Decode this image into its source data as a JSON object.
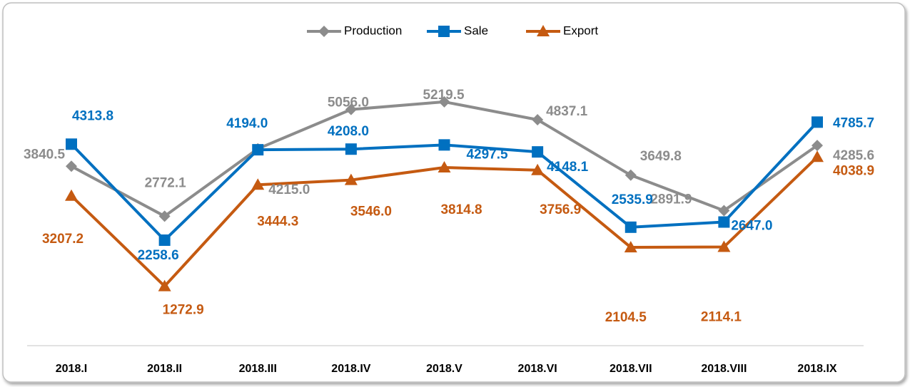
{
  "chart_data": {
    "type": "line",
    "categories": [
      "2018.I",
      "2018.II",
      "2018.III",
      "2018.IV",
      "2018.V",
      "2018.VI",
      "2018.VII",
      "2018.VIII",
      "2018.IX"
    ],
    "ylim": [
      0,
      6500
    ],
    "legend": "top",
    "series": [
      {
        "name": "Production",
        "color": "#8c8c8c",
        "marker": "diamond",
        "values": [
          3840.5,
          2772.1,
          4215.0,
          5056.0,
          5219.5,
          4837.1,
          3649.8,
          2891.9,
          4285.6
        ],
        "value_labels": [
          "3840.5",
          "2772.1",
          "4215.0",
          "5056.0",
          "5219.5",
          "4837.1",
          "3649.8",
          "2891.9",
          "4285.6"
        ]
      },
      {
        "name": "Sale",
        "color": "#0070c0",
        "marker": "square",
        "values": [
          4313.8,
          2258.6,
          4194.0,
          4208.0,
          4297.5,
          4148.1,
          2535.9,
          2647.0,
          4785.7
        ],
        "value_labels": [
          "4313.8",
          "2258.6",
          "4194.0",
          "4208.0",
          "4297.5",
          "4148.1",
          "2535.9",
          "2647.0",
          "4785.7"
        ]
      },
      {
        "name": "Export",
        "color": "#c55a11",
        "marker": "triangle",
        "values": [
          3207.2,
          1272.9,
          3444.3,
          3546.0,
          3814.8,
          3756.9,
          2104.5,
          2114.1,
          4038.9
        ],
        "value_labels": [
          "3207.2",
          "1272.9",
          "3444.3",
          "3546.0",
          "3814.8",
          "3756.9",
          "2104.5",
          "2114.1",
          "4038.9"
        ]
      }
    ]
  }
}
